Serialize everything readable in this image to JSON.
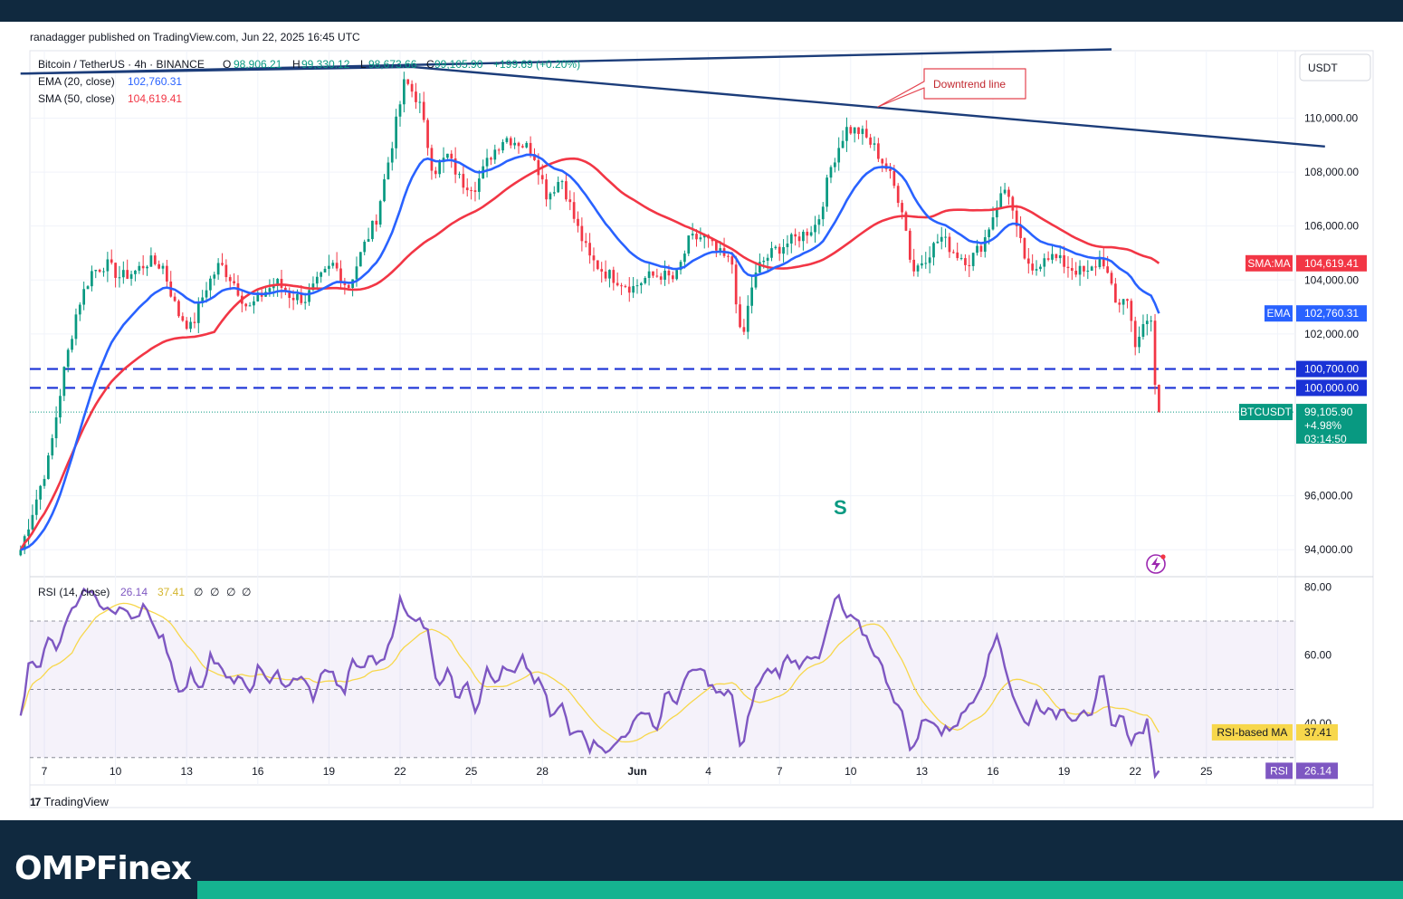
{
  "publisher": "ranadagger published on TradingView.com, Jun 22, 2025 16:45 UTC",
  "branding": {
    "tradingview": "TradingView",
    "site": "OMPFinex"
  },
  "colors": {
    "background": "#ffffff",
    "up": "#089981",
    "down": "#f23645",
    "ema": "#2962ff",
    "sma": "#f23645",
    "rsi": "#7e57c2",
    "rsi_ma": "#f7d74b",
    "trendline": "#1c3d7a",
    "level": "#1a32d6",
    "footer": "#10293f",
    "accent": "#15b390"
  },
  "chart_data": [
    {
      "type": "candlestick",
      "symbol_line": "Bitcoin / TetherUS · 4h · BINANCE",
      "ohlc": {
        "open_label": "O",
        "open": "98,906.21",
        "high_label": "H",
        "high": "99,330.12",
        "low_label": "L",
        "low": "98,673.66",
        "close_label": "C",
        "close": "99,105.90",
        "change": "+199.69 (+0.20%)"
      },
      "indicators": [
        {
          "name": "EMA (20, close)",
          "value": "102,760.31",
          "color": "#2962ff"
        },
        {
          "name": "SMA (50, close)",
          "value": "104,619.41",
          "color": "#f23645"
        }
      ],
      "currency": "USDT",
      "ylim": [
        93000,
        112500
      ],
      "y_ticks": [
        "110,000.00",
        "108,000.00",
        "106,000.00",
        "104,000.00",
        "102,000.00",
        "96,000.00",
        "94,000.00"
      ],
      "x_ticks": [
        "7",
        "10",
        "13",
        "16",
        "19",
        "22",
        "25",
        "28",
        "Jun",
        "4",
        "7",
        "10",
        "13",
        "16",
        "19",
        "22",
        "25",
        "28"
      ],
      "x_tick_days": [
        7,
        10,
        13,
        16,
        19,
        22,
        25,
        28,
        32,
        35,
        38,
        41,
        44,
        47,
        50,
        53,
        56,
        59
      ],
      "x_note": "day index counted from May 1 (Jun 1 = 32); 6 candles per day on the 4h chart",
      "price_key_points": [
        [
          6.0,
          94000
        ],
        [
          6.6,
          95700
        ],
        [
          7.2,
          97400
        ],
        [
          7.8,
          100500
        ],
        [
          8.4,
          103000
        ],
        [
          9.0,
          104300
        ],
        [
          9.6,
          104600
        ],
        [
          10.2,
          104100
        ],
        [
          10.8,
          104300
        ],
        [
          11.4,
          104700
        ],
        [
          12.0,
          104500
        ],
        [
          12.6,
          102800
        ],
        [
          13.2,
          102200
        ],
        [
          13.8,
          103700
        ],
        [
          14.4,
          104600
        ],
        [
          15.0,
          103900
        ],
        [
          15.6,
          102900
        ],
        [
          16.2,
          103500
        ],
        [
          16.8,
          103900
        ],
        [
          17.4,
          103400
        ],
        [
          18.0,
          103300
        ],
        [
          18.6,
          104000
        ],
        [
          19.2,
          104600
        ],
        [
          19.8,
          103700
        ],
        [
          20.4,
          105100
        ],
        [
          21.0,
          106300
        ],
        [
          21.6,
          108800
        ],
        [
          22.2,
          111400
        ],
        [
          22.8,
          110600
        ],
        [
          23.4,
          108000
        ],
        [
          24.0,
          108600
        ],
        [
          24.6,
          107600
        ],
        [
          25.2,
          107500
        ],
        [
          25.8,
          108600
        ],
        [
          26.4,
          109300
        ],
        [
          27.0,
          109100
        ],
        [
          27.6,
          108800
        ],
        [
          28.2,
          107100
        ],
        [
          28.8,
          107800
        ],
        [
          29.4,
          106100
        ],
        [
          30.0,
          104800
        ],
        [
          30.6,
          104300
        ],
        [
          31.2,
          104000
        ],
        [
          31.8,
          103700
        ],
        [
          32.4,
          104100
        ],
        [
          33.0,
          104200
        ],
        [
          33.6,
          104000
        ],
        [
          34.2,
          105500
        ],
        [
          34.8,
          105600
        ],
        [
          35.4,
          105000
        ],
        [
          36.0,
          104600
        ],
        [
          36.4,
          101500
        ],
        [
          36.8,
          103700
        ],
        [
          37.2,
          104600
        ],
        [
          37.8,
          105100
        ],
        [
          38.4,
          105400
        ],
        [
          39.0,
          105700
        ],
        [
          39.6,
          106100
        ],
        [
          40.2,
          108300
        ],
        [
          40.8,
          109600
        ],
        [
          41.4,
          109500
        ],
        [
          42.0,
          108900
        ],
        [
          42.6,
          108000
        ],
        [
          43.2,
          106600
        ],
        [
          43.6,
          104300
        ],
        [
          44.2,
          104900
        ],
        [
          44.8,
          105600
        ],
        [
          45.4,
          105000
        ],
        [
          46.0,
          104700
        ],
        [
          46.6,
          105400
        ],
        [
          47.2,
          106900
        ],
        [
          47.6,
          107500
        ],
        [
          48.0,
          105800
        ],
        [
          48.6,
          104100
        ],
        [
          49.2,
          105000
        ],
        [
          49.8,
          104700
        ],
        [
          50.4,
          104400
        ],
        [
          51.0,
          104200
        ],
        [
          51.6,
          104900
        ],
        [
          52.2,
          103000
        ],
        [
          52.6,
          103500
        ],
        [
          53.0,
          101700
        ],
        [
          53.4,
          102300
        ],
        [
          53.7,
          102500
        ],
        [
          53.9,
          98900
        ],
        [
          54.0,
          99100
        ]
      ],
      "annotations": [
        {
          "label": "Downtrend line",
          "type": "callout"
        },
        {
          "label": "S",
          "type": "text"
        }
      ],
      "trendlines": [
        {
          "name": "upper-trendline",
          "points": [
            [
              6.0,
              111650
            ],
            [
              52.0,
              112550
            ]
          ]
        },
        {
          "name": "downtrend-line",
          "points": [
            [
              6.0,
              111650
            ],
            [
              22.5,
              111900
            ],
            [
              61.0,
              108950
            ]
          ]
        }
      ],
      "horizontal_levels": [
        {
          "label": "100,700.00",
          "value": 100700,
          "style": "dashed"
        },
        {
          "label": "100,000.00",
          "value": 100000,
          "style": "dashed"
        }
      ],
      "price_tags": [
        {
          "label": "SMA:MA",
          "value_label": "104,619.41",
          "value": 104619.41,
          "color": "#f23645"
        },
        {
          "label": "EMA",
          "value_label": "102,760.31",
          "value": 102760.31,
          "color": "#2962ff"
        },
        {
          "label": "BTCUSDT",
          "value_label": "99,105.90",
          "value": 99105.9,
          "change": "+4.98%",
          "countdown": "03:14:50",
          "color": "#089981"
        }
      ]
    },
    {
      "type": "line",
      "title": "RSI (14, close)",
      "values_line": [
        "26.14",
        "37.41",
        "∅",
        "∅",
        "∅",
        "∅"
      ],
      "ylim": [
        22,
        83
      ],
      "band": [
        30,
        70
      ],
      "midline": 50,
      "y_ticks": [
        "80.00",
        "60.00",
        "40.00"
      ],
      "rsi_key_points": [
        [
          6.0,
          41
        ],
        [
          6.4,
          60
        ],
        [
          6.8,
          57
        ],
        [
          7.2,
          65
        ],
        [
          7.6,
          61
        ],
        [
          8.0,
          72
        ],
        [
          8.4,
          74
        ],
        [
          8.8,
          80
        ],
        [
          9.2,
          76
        ],
        [
          9.6,
          74
        ],
        [
          10.0,
          72
        ],
        [
          10.4,
          74
        ],
        [
          10.8,
          71
        ],
        [
          11.2,
          75
        ],
        [
          11.6,
          67
        ],
        [
          12.0,
          66
        ],
        [
          12.4,
          56
        ],
        [
          12.8,
          48
        ],
        [
          13.2,
          55
        ],
        [
          13.6,
          50
        ],
        [
          14.0,
          60
        ],
        [
          14.4,
          56
        ],
        [
          14.8,
          52
        ],
        [
          15.2,
          54
        ],
        [
          15.6,
          48
        ],
        [
          16.0,
          56
        ],
        [
          16.4,
          52
        ],
        [
          16.8,
          56
        ],
        [
          17.2,
          49
        ],
        [
          17.6,
          54
        ],
        [
          18.0,
          52
        ],
        [
          18.4,
          47
        ],
        [
          18.8,
          57
        ],
        [
          19.2,
          54
        ],
        [
          19.6,
          48
        ],
        [
          20.0,
          58
        ],
        [
          20.4,
          56
        ],
        [
          20.8,
          60
        ],
        [
          21.2,
          57
        ],
        [
          21.6,
          65
        ],
        [
          22.0,
          76
        ],
        [
          22.4,
          70
        ],
        [
          22.8,
          72
        ],
        [
          23.2,
          66
        ],
        [
          23.6,
          51
        ],
        [
          24.0,
          56
        ],
        [
          24.4,
          47
        ],
        [
          24.8,
          54
        ],
        [
          25.2,
          43
        ],
        [
          25.6,
          56
        ],
        [
          26.0,
          52
        ],
        [
          26.4,
          56
        ],
        [
          26.8,
          54
        ],
        [
          27.2,
          59
        ],
        [
          27.6,
          53
        ],
        [
          28.0,
          51
        ],
        [
          28.4,
          41
        ],
        [
          28.8,
          46
        ],
        [
          29.2,
          36
        ],
        [
          29.6,
          40
        ],
        [
          30.0,
          33
        ],
        [
          30.4,
          35
        ],
        [
          30.8,
          31
        ],
        [
          31.2,
          35
        ],
        [
          31.6,
          38
        ],
        [
          32.0,
          41
        ],
        [
          32.4,
          45
        ],
        [
          32.8,
          37
        ],
        [
          33.2,
          49
        ],
        [
          33.6,
          46
        ],
        [
          34.0,
          52
        ],
        [
          34.4,
          56
        ],
        [
          34.8,
          55
        ],
        [
          35.2,
          50
        ],
        [
          35.6,
          48
        ],
        [
          36.0,
          49
        ],
        [
          36.4,
          30
        ],
        [
          36.8,
          46
        ],
        [
          37.2,
          53
        ],
        [
          37.6,
          56
        ],
        [
          38.0,
          55
        ],
        [
          38.4,
          60
        ],
        [
          38.8,
          57
        ],
        [
          39.2,
          61
        ],
        [
          39.6,
          57
        ],
        [
          40.0,
          67
        ],
        [
          40.4,
          78
        ],
        [
          40.8,
          71
        ],
        [
          41.2,
          70
        ],
        [
          41.6,
          66
        ],
        [
          42.0,
          61
        ],
        [
          42.4,
          55
        ],
        [
          42.8,
          48
        ],
        [
          43.2,
          42
        ],
        [
          43.6,
          31
        ],
        [
          44.0,
          40
        ],
        [
          44.4,
          42
        ],
        [
          44.8,
          37
        ],
        [
          45.2,
          39
        ],
        [
          45.6,
          41
        ],
        [
          46.0,
          46
        ],
        [
          46.4,
          50
        ],
        [
          46.8,
          58
        ],
        [
          47.2,
          67
        ],
        [
          47.6,
          54
        ],
        [
          48.0,
          45
        ],
        [
          48.4,
          39
        ],
        [
          48.8,
          46
        ],
        [
          49.2,
          44
        ],
        [
          49.6,
          42
        ],
        [
          50.0,
          45
        ],
        [
          50.4,
          41
        ],
        [
          50.8,
          45
        ],
        [
          51.2,
          41
        ],
        [
          51.6,
          56
        ],
        [
          52.0,
          39
        ],
        [
          52.4,
          43
        ],
        [
          52.8,
          35
        ],
        [
          53.2,
          37
        ],
        [
          53.5,
          40
        ],
        [
          53.8,
          26
        ],
        [
          54.0,
          26.14
        ]
      ],
      "price_tags": [
        {
          "label": "RSI-based MA",
          "value_label": "37.41",
          "value": 37.41,
          "color": "#f7d74b"
        },
        {
          "label": "RSI",
          "value_label": "26.14",
          "value": 26.14,
          "color": "#7e57c2"
        }
      ]
    }
  ]
}
